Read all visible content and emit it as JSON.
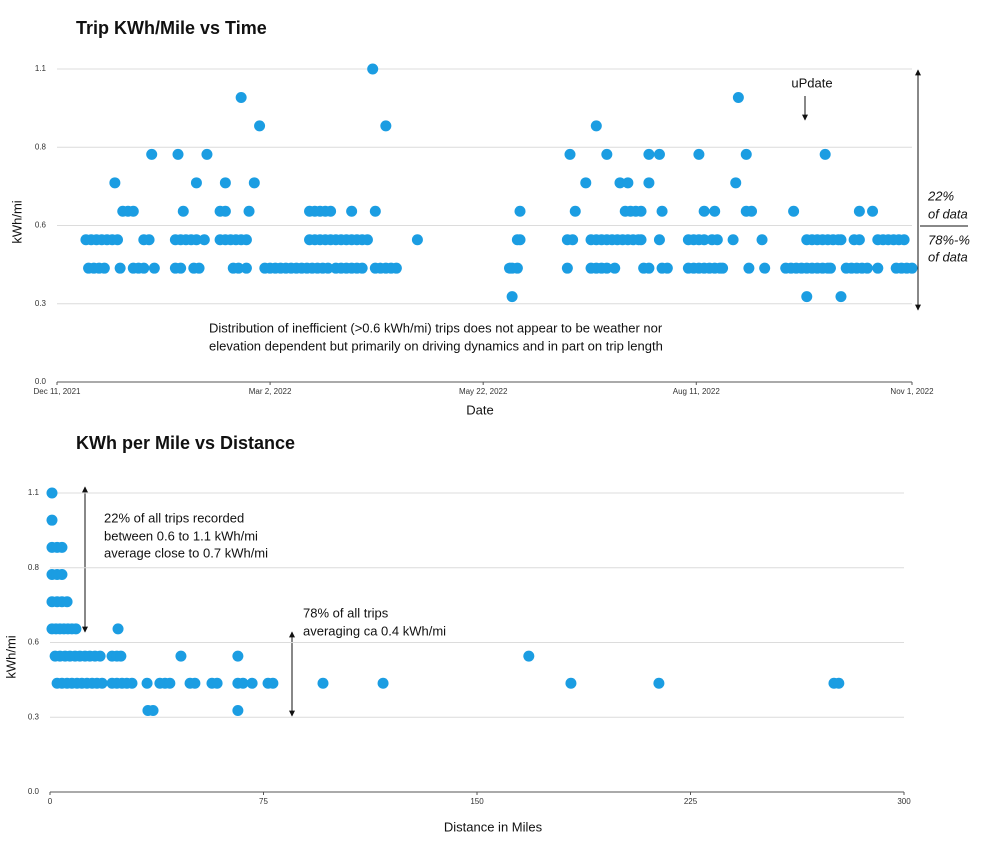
{
  "chart_data": [
    {
      "type": "scatter",
      "title": "Trip KWh/Mile vs Time",
      "xlabel": "Date",
      "ylabel": "kWh/mi",
      "color": "#1b9de2",
      "grid": true,
      "xlim": [
        "2021-12-11",
        "2022-11-01"
      ],
      "xticks": [
        {
          "value": "2021-12-11",
          "label": "Dec 11, 2021"
        },
        {
          "value": "2022-03-02",
          "label": "Mar 2, 2022"
        },
        {
          "value": "2022-05-22",
          "label": "May 22, 2022"
        },
        {
          "value": "2022-08-11",
          "label": "Aug 11, 2022"
        },
        {
          "value": "2022-11-01",
          "label": "Nov 1, 2022"
        }
      ],
      "ylim": [
        0,
        1.1
      ],
      "yticks": [
        {
          "value": 0,
          "label": "0.0"
        },
        {
          "value": 0.275,
          "label": "0.3"
        },
        {
          "value": 0.55,
          "label": "0.6"
        },
        {
          "value": 0.825,
          "label": "0.8"
        },
        1.1
      ],
      "annotations": [
        "uPdate",
        "Distribution of inefficient (>0.6 kWh/mi) trips does not appear to be weather nor",
        "elevation dependent but primarily on driving dynamics and in part on trip length",
        "22%",
        "of data",
        "78%-%",
        "of data"
      ],
      "x": [
        "2021-12-22",
        "2021-12-24",
        "2021-12-26",
        "2021-12-28",
        "2021-12-30",
        "2022-01-01",
        "2022-01-03",
        "2022-01-13",
        "2022-01-15",
        "2022-01-25",
        "2022-01-27",
        "2022-01-29",
        "2022-01-31",
        "2022-02-02",
        "2022-02-05",
        "2022-02-11",
        "2022-02-13",
        "2022-02-15",
        "2022-02-17",
        "2022-02-19",
        "2022-02-21",
        "2022-03-17",
        "2022-03-19",
        "2022-03-21",
        "2022-03-23",
        "2022-03-25",
        "2022-03-27",
        "2022-03-29",
        "2022-03-31",
        "2022-04-02",
        "2022-04-04",
        "2022-04-06",
        "2022-04-08",
        "2022-04-27",
        "2022-06-04",
        "2022-06-05",
        "2022-06-23",
        "2022-06-25",
        "2022-07-02",
        "2022-07-04",
        "2022-07-06",
        "2022-07-08",
        "2022-07-10",
        "2022-07-12",
        "2022-07-14",
        "2022-07-16",
        "2022-07-18",
        "2022-07-20",
        "2022-07-21",
        "2022-07-28",
        "2022-08-08",
        "2022-08-10",
        "2022-08-12",
        "2022-08-14",
        "2022-08-17",
        "2022-08-19",
        "2022-08-25",
        "2022-09-05",
        "2022-09-22",
        "2022-09-24",
        "2022-09-26",
        "2022-09-28",
        "2022-09-30",
        "2022-10-02",
        "2022-10-04",
        "2022-10-05",
        "2022-10-10",
        "2022-10-12",
        "2022-10-19",
        "2022-10-21",
        "2022-10-23",
        "2022-10-25",
        "2022-10-27",
        "2022-10-29",
        "2021-12-23",
        "2021-12-25",
        "2021-12-27",
        "2021-12-29",
        "2022-01-04",
        "2022-01-09",
        "2022-01-11",
        "2022-01-13",
        "2022-01-17",
        "2022-01-25",
        "2022-01-27",
        "2022-02-01",
        "2022-02-03",
        "2022-02-16",
        "2022-02-18",
        "2022-02-21",
        "2022-02-28",
        "2022-03-02",
        "2022-03-04",
        "2022-03-06",
        "2022-03-08",
        "2022-03-10",
        "2022-03-12",
        "2022-03-14",
        "2022-03-16",
        "2022-03-18",
        "2022-03-20",
        "2022-03-22",
        "2022-03-24",
        "2022-03-27",
        "2022-03-29",
        "2022-03-31",
        "2022-04-02",
        "2022-04-04",
        "2022-04-06",
        "2022-04-11",
        "2022-04-13",
        "2022-04-15",
        "2022-04-17",
        "2022-04-19",
        "2022-06-01",
        "2022-06-02",
        "2022-06-04",
        "2022-06-23",
        "2022-07-02",
        "2022-07-04",
        "2022-07-06",
        "2022-07-08",
        "2022-07-11",
        "2022-07-22",
        "2022-07-24",
        "2022-07-29",
        "2022-07-31",
        "2022-08-08",
        "2022-08-10",
        "2022-08-12",
        "2022-08-14",
        "2022-08-16",
        "2022-08-18",
        "2022-08-20",
        "2022-08-21",
        "2022-08-31",
        "2022-09-06",
        "2022-09-14",
        "2022-09-16",
        "2022-09-18",
        "2022-09-20",
        "2022-09-22",
        "2022-09-24",
        "2022-09-26",
        "2022-09-28",
        "2022-09-30",
        "2022-10-01",
        "2022-10-07",
        "2022-10-09",
        "2022-10-11",
        "2022-10-13",
        "2022-10-15",
        "2022-10-19",
        "2022-10-26",
        "2022-10-28",
        "2022-10-30",
        "2022-11-01",
        "2022-06-02",
        "2022-09-22",
        "2022-10-05",
        "2022-01-05",
        "2022-01-07",
        "2022-01-09",
        "2022-01-28",
        "2022-02-11",
        "2022-02-13",
        "2022-02-22",
        "2022-03-17",
        "2022-03-19",
        "2022-03-21",
        "2022-03-23",
        "2022-03-25",
        "2022-04-02",
        "2022-04-11",
        "2022-06-05",
        "2022-06-26",
        "2022-07-15",
        "2022-07-17",
        "2022-07-19",
        "2022-07-21",
        "2022-07-29",
        "2022-08-14",
        "2022-08-18",
        "2022-08-30",
        "2022-09-01",
        "2022-09-17",
        "2022-10-12",
        "2022-10-17",
        "2022-01-02",
        "2022-02-02",
        "2022-02-13",
        "2022-02-24",
        "2022-06-30",
        "2022-07-13",
        "2022-07-16",
        "2022-07-24",
        "2022-08-26",
        "2022-01-16",
        "2022-01-26",
        "2022-02-06",
        "2022-06-24",
        "2022-07-08",
        "2022-07-24",
        "2022-07-28",
        "2022-08-12",
        "2022-08-30",
        "2022-09-29",
        "2022-02-26",
        "2022-04-15",
        "2022-07-04",
        "2022-02-19",
        "2022-08-27",
        "2022-04-10"
      ],
      "values": [
        0.5,
        0.5,
        0.5,
        0.5,
        0.5,
        0.5,
        0.5,
        0.5,
        0.5,
        0.5,
        0.5,
        0.5,
        0.5,
        0.5,
        0.5,
        0.5,
        0.5,
        0.5,
        0.5,
        0.5,
        0.5,
        0.5,
        0.5,
        0.5,
        0.5,
        0.5,
        0.5,
        0.5,
        0.5,
        0.5,
        0.5,
        0.5,
        0.5,
        0.5,
        0.5,
        0.5,
        0.5,
        0.5,
        0.5,
        0.5,
        0.5,
        0.5,
        0.5,
        0.5,
        0.5,
        0.5,
        0.5,
        0.5,
        0.5,
        0.5,
        0.5,
        0.5,
        0.5,
        0.5,
        0.5,
        0.5,
        0.5,
        0.5,
        0.5,
        0.5,
        0.5,
        0.5,
        0.5,
        0.5,
        0.5,
        0.5,
        0.5,
        0.5,
        0.5,
        0.5,
        0.5,
        0.5,
        0.5,
        0.5,
        0.4,
        0.4,
        0.4,
        0.4,
        0.4,
        0.4,
        0.4,
        0.4,
        0.4,
        0.4,
        0.4,
        0.4,
        0.4,
        0.4,
        0.4,
        0.4,
        0.4,
        0.4,
        0.4,
        0.4,
        0.4,
        0.4,
        0.4,
        0.4,
        0.4,
        0.4,
        0.4,
        0.4,
        0.4,
        0.4,
        0.4,
        0.4,
        0.4,
        0.4,
        0.4,
        0.4,
        0.4,
        0.4,
        0.4,
        0.4,
        0.4,
        0.4,
        0.4,
        0.4,
        0.4,
        0.4,
        0.4,
        0.4,
        0.4,
        0.4,
        0.4,
        0.4,
        0.4,
        0.4,
        0.4,
        0.4,
        0.4,
        0.4,
        0.4,
        0.4,
        0.4,
        0.4,
        0.4,
        0.4,
        0.4,
        0.4,
        0.4,
        0.4,
        0.4,
        0.4,
        0.4,
        0.4,
        0.4,
        0.4,
        0.4,
        0.4,
        0.4,
        0.4,
        0.4,
        0.4,
        0.4,
        0.4,
        0.4,
        0.3,
        0.3,
        0.3,
        0.6,
        0.6,
        0.6,
        0.6,
        0.6,
        0.6,
        0.6,
        0.6,
        0.6,
        0.6,
        0.6,
        0.6,
        0.6,
        0.6,
        0.6,
        0.6,
        0.6,
        0.6,
        0.6,
        0.6,
        0.6,
        0.6,
        0.6,
        0.6,
        0.6,
        0.6,
        0.6,
        0.6,
        0.7,
        0.7,
        0.7,
        0.7,
        0.7,
        0.7,
        0.7,
        0.7,
        0.7,
        0.8,
        0.8,
        0.8,
        0.8,
        0.8,
        0.8,
        0.8,
        0.8,
        0.8,
        0.8,
        0.9,
        0.9,
        0.9,
        1.0,
        1.0,
        1.1
      ]
    },
    {
      "type": "scatter",
      "title": "KWh per Mile vs Distance",
      "xlabel": "Distance in Miles",
      "ylabel": "kWh/mi",
      "color": "#1b9de2",
      "grid": true,
      "xlim": [
        0,
        300
      ],
      "xticks": [
        0,
        75,
        150,
        225,
        300
      ],
      "ylim": [
        0,
        1.1
      ],
      "yticks": [
        {
          "value": 0,
          "label": "0.0"
        },
        {
          "value": 0.275,
          "label": "0.3"
        },
        {
          "value": 0.55,
          "label": "0.6"
        },
        {
          "value": 0.825,
          "label": "0.8"
        },
        1.1
      ],
      "annotations": [
        "22% of all trips recorded",
        "between 0.6 to 1.1 kWh/mi",
        "average close to 0.7 kWh/mi",
        "78% of all trips",
        "averaging ca 0.4 kWh/mi"
      ],
      "x": [
        0.7,
        0.7,
        0.7,
        2.5,
        4.2,
        0.7,
        2.5,
        4.2,
        0.7,
        2.5,
        4.2,
        6,
        0.7,
        2.1,
        3.5,
        4.9,
        6.3,
        7.7,
        9.1,
        23.9,
        1.8,
        3.5,
        5.3,
        7,
        8.8,
        10.5,
        12.3,
        14,
        15.8,
        17.6,
        21.8,
        23.5,
        24.9,
        46,
        66,
        168.2,
        2.5,
        4.2,
        6,
        7.7,
        9.5,
        11.2,
        13,
        14.8,
        16.5,
        18.3,
        21.8,
        23.5,
        25.3,
        27,
        28.8,
        34.1,
        38.6,
        40.4,
        42.1,
        49.2,
        50.9,
        56.9,
        58.7,
        66,
        67.8,
        71,
        76.6,
        78.3,
        95.9,
        117,
        183,
        213.9,
        275.4,
        277.1,
        34.4,
        36.2,
        66
      ],
      "values": [
        1.1,
        1.0,
        0.9,
        0.9,
        0.9,
        0.8,
        0.8,
        0.8,
        0.7,
        0.7,
        0.7,
        0.7,
        0.6,
        0.6,
        0.6,
        0.6,
        0.6,
        0.6,
        0.6,
        0.6,
        0.5,
        0.5,
        0.5,
        0.5,
        0.5,
        0.5,
        0.5,
        0.5,
        0.5,
        0.5,
        0.5,
        0.5,
        0.5,
        0.5,
        0.5,
        0.5,
        0.4,
        0.4,
        0.4,
        0.4,
        0.4,
        0.4,
        0.4,
        0.4,
        0.4,
        0.4,
        0.4,
        0.4,
        0.4,
        0.4,
        0.4,
        0.4,
        0.4,
        0.4,
        0.4,
        0.4,
        0.4,
        0.4,
        0.4,
        0.4,
        0.4,
        0.4,
        0.4,
        0.4,
        0.4,
        0.4,
        0.4,
        0.4,
        0.4,
        0.4,
        0.3,
        0.3,
        0.3
      ]
    }
  ]
}
